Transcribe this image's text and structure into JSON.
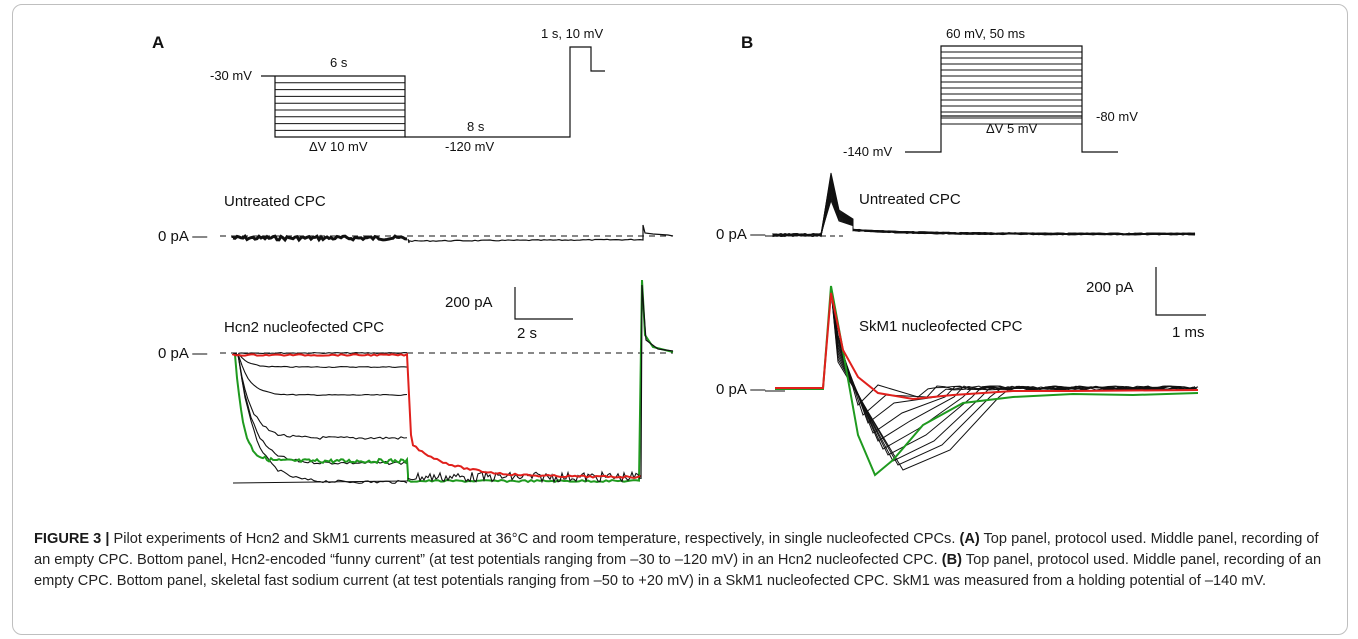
{
  "panels": {
    "a": {
      "letter": "A",
      "protocol": {
        "hold_label": "-30 mV",
        "step_duration": "6 s",
        "step_delta": "ΔV 10 mV",
        "hyper_duration": "8 s",
        "hyper_voltage": "-120 mV",
        "test_label": "1 s, 10 mV"
      },
      "untreated_label": "Untreated CPC",
      "hcn2_label": "Hcn2 nucleofected CPC",
      "zero_label_top": "0 pA —",
      "zero_label_bottom": "0 pA —",
      "scale_current": "200 pA",
      "scale_time": "2 s"
    },
    "b": {
      "letter": "B",
      "protocol": {
        "step_top": "60 mV, 50 ms",
        "step_delta": "ΔV 5 mV",
        "post_label": "-80 mV",
        "hold_label": "-140 mV"
      },
      "untreated_label": "Untreated CPC",
      "skm1_label": "SkM1 nucleofected CPC",
      "zero_label_top": "0 pA —",
      "zero_label_bottom": "0 pA —",
      "scale_current": "200 pA",
      "scale_time": "1 ms"
    }
  },
  "colors": {
    "trace": "#111111",
    "red_trace": "#e0201c",
    "green_trace": "#1f9a1f"
  },
  "caption": {
    "lead": "FIGURE 3 |",
    "intro": "Pilot experiments of Hcn2 and SkM1 currents measured at 36°C and room temperature, respectively, in single nucleofected CPCs.",
    "label_a": "(A)",
    "text_a": "Top panel, protocol used. Middle panel, recording of an empty CPC. Bottom panel, Hcn2-encoded “funny current” (at test potentials ranging from –30 to –120 mV) in an Hcn2 nucleofected CPC.",
    "label_b": "(B)",
    "text_b": "Top panel, protocol used. Middle panel, recording of an empty CPC. Bottom panel, skeletal fast sodium current (at test potentials ranging from –50 to +20 mV) in a SkM1 nucleofected CPC. SkM1 was measured from a holding potential of –140 mV."
  }
}
